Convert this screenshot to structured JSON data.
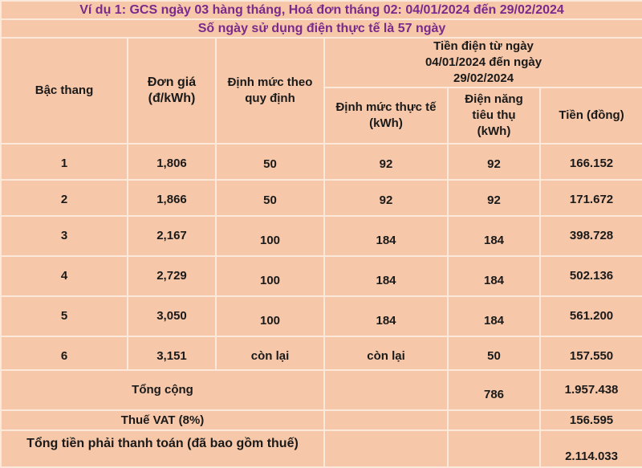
{
  "title": "Ví dụ 1: GCS ngày 03 hàng tháng, Hoá đơn tháng 02: 04/01/2024 đến 29/02/2024",
  "subtitle": "Số ngày sử dụng điện thực tế là 57 ngày",
  "colors": {
    "title": "#7a2a8c",
    "background": "#f6c7a8",
    "border": "#fbe9dc"
  },
  "headers": {
    "tier": "Bậc thang",
    "price": "Đơn giá (đ/kWh)",
    "quota": "Định mức theo quy định",
    "period": "Tiền điện từ ngày 04/01/2024 đến ngày 29/02/2024",
    "actual_quota": "Định mức thực tế (kWh)",
    "consumption": "Điện năng tiêu thụ (kWh)",
    "amount": "Tiền (đồng)"
  },
  "rows": [
    {
      "tier": "1",
      "price": "1,806",
      "quota": "50",
      "actual": "92",
      "consumption": "92",
      "amount": "166.152"
    },
    {
      "tier": "2",
      "price": "1,866",
      "quota": "50",
      "actual": "92",
      "consumption": "92",
      "amount": "171.672"
    },
    {
      "tier": "3",
      "price": "2,167",
      "quota": "100",
      "actual": "184",
      "consumption": "184",
      "amount": "398.728"
    },
    {
      "tier": "4",
      "price": "2,729",
      "quota": "100",
      "actual": "184",
      "consumption": "184",
      "amount": "502.136"
    },
    {
      "tier": "5",
      "price": "3,050",
      "quota": "100",
      "actual": "184",
      "consumption": "184",
      "amount": "561.200"
    },
    {
      "tier": "6",
      "price": "3,151",
      "quota": "còn lại",
      "actual": "còn lại",
      "consumption": "50",
      "amount": "157.550"
    }
  ],
  "total": {
    "label": "Tổng cộng",
    "consumption": "786",
    "amount": "1.957.438"
  },
  "vat": {
    "label": "Thuế VAT (8%)",
    "amount": "156.595"
  },
  "grand_total": {
    "label": "Tổng tiền phải thanh toán (đã bao gồm thuế)",
    "amount": "2.114.033"
  }
}
